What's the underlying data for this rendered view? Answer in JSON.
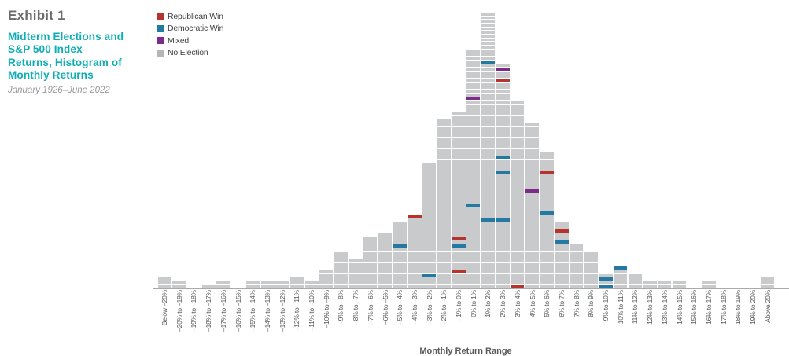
{
  "exhibit": {
    "label": "Exhibit 1"
  },
  "title": {
    "lines": [
      "Midterm Elections and",
      "S&P 500 Index",
      "Returns, Histogram of",
      "Monthly Returns"
    ],
    "subtitle": "January 1926–June 2022"
  },
  "legend": {
    "items": [
      {
        "key": "R",
        "label": "Republican Win",
        "color": "#b7342e"
      },
      {
        "key": "D",
        "label": "Democratic Win",
        "color": "#2379a1"
      },
      {
        "key": "M",
        "label": "Mixed",
        "color": "#7c2b8b"
      },
      {
        "key": "N",
        "label": "No Election",
        "color": "#b4b6b8"
      }
    ]
  },
  "colors": {
    "block_gray": "#c9cacb",
    "axis_line": "#a8aaac",
    "accent_teal": "#0fadb5"
  },
  "chart_data": {
    "type": "bar",
    "subtype": "stacked-unit-histogram",
    "title": "Midterm Elections and S&P 500 Index Returns, Histogram of Monthly Returns",
    "xlabel": "Monthly Return Range",
    "ylabel": "",
    "grid": false,
    "legend_position": "top-left",
    "note_unit": "each block = one month; colored blocks = midterm election months",
    "categories": [
      "Below –20%",
      "–20% to –19%",
      "–19% to –18%",
      "–18% to –17%",
      "–17% to –16%",
      "–16% to –15%",
      "–15% to –14%",
      "–14% to –13%",
      "–13% to –12%",
      "–12% to –11%",
      "–11% to –10%",
      "–10% to –9%",
      "–9% to –8%",
      "–8% to –7%",
      "–7% to –6%",
      "–6% to –5%",
      "–5% to –4%",
      "–4% to –3%",
      "–3% to –2%",
      "–2% to –1%",
      "–1% to 0%",
      "0% to 1%",
      "1% to 2%",
      "2% to 3%",
      "3% to 4%",
      "4% to 5%",
      "5% to 6%",
      "6% to 7%",
      "7% to 8%",
      "8% to 9%",
      "9% to 10%",
      "10% to 11%",
      "11% to 12%",
      "12% to 13%",
      "13% to 14%",
      "14% to 15%",
      "15% to 16%",
      "16% to 17%",
      "17% to 18%",
      "18% to 19%",
      "19% to 20%",
      "Above 20%"
    ],
    "values": [
      3,
      2,
      0,
      1,
      2,
      0,
      2,
      2,
      2,
      3,
      2,
      5,
      10,
      8,
      14,
      15,
      18,
      20,
      34,
      46,
      48,
      65,
      75,
      61,
      51,
      45,
      37,
      18,
      12,
      10,
      4,
      6,
      4,
      2,
      2,
      2,
      0,
      2,
      0,
      0,
      0,
      3
    ],
    "bins": [
      {
        "label": "Below –20%",
        "count": 3,
        "marks": {}
      },
      {
        "label": "–20% to –19%",
        "count": 2,
        "marks": {}
      },
      {
        "label": "–19% to –18%",
        "count": 0,
        "marks": {}
      },
      {
        "label": "–18% to –17%",
        "count": 1,
        "marks": {}
      },
      {
        "label": "–17% to –16%",
        "count": 2,
        "marks": {}
      },
      {
        "label": "–16% to –15%",
        "count": 0,
        "marks": {}
      },
      {
        "label": "–15% to –14%",
        "count": 2,
        "marks": {}
      },
      {
        "label": "–14% to –13%",
        "count": 2,
        "marks": {}
      },
      {
        "label": "–13% to –12%",
        "count": 2,
        "marks": {}
      },
      {
        "label": "–12% to –11%",
        "count": 3,
        "marks": {}
      },
      {
        "label": "–11% to –10%",
        "count": 2,
        "marks": {}
      },
      {
        "label": "–10% to –9%",
        "count": 5,
        "marks": {}
      },
      {
        "label": "–9% to –8%",
        "count": 10,
        "marks": {}
      },
      {
        "label": "–8% to –7%",
        "count": 8,
        "marks": {}
      },
      {
        "label": "–7% to –6%",
        "count": 14,
        "marks": {}
      },
      {
        "label": "–6% to –5%",
        "count": 15,
        "marks": {}
      },
      {
        "label": "–5% to –4%",
        "count": 18,
        "marks": {
          "12": "D"
        }
      },
      {
        "label": "–4% to –3%",
        "count": 20,
        "marks": {
          "20": "R"
        }
      },
      {
        "label": "–3% to –2%",
        "count": 34,
        "marks": {
          "4": "D"
        }
      },
      {
        "label": "–2% to –1%",
        "count": 46,
        "marks": {}
      },
      {
        "label": "–1% to 0%",
        "count": 48,
        "marks": {
          "14": "R",
          "12": "D",
          "5": "R"
        }
      },
      {
        "label": "0% to 1%",
        "count": 65,
        "marks": {
          "52": "M",
          "23": "D"
        }
      },
      {
        "label": "1% to 2%",
        "count": 75,
        "marks": {
          "62": "D",
          "19": "D"
        }
      },
      {
        "label": "2% to 3%",
        "count": 61,
        "marks": {
          "60": "M",
          "57": "R",
          "36": "D",
          "32": "D",
          "19": "D"
        }
      },
      {
        "label": "3% to 4%",
        "count": 51,
        "marks": {
          "1": "R"
        }
      },
      {
        "label": "4% to 5%",
        "count": 45,
        "marks": {
          "27": "M"
        }
      },
      {
        "label": "5% to 6%",
        "count": 37,
        "marks": {
          "32": "R",
          "21": "D"
        }
      },
      {
        "label": "6% to 7%",
        "count": 18,
        "marks": {
          "16": "R",
          "13": "D"
        }
      },
      {
        "label": "7% to 8%",
        "count": 12,
        "marks": {}
      },
      {
        "label": "8% to 9%",
        "count": 10,
        "marks": {}
      },
      {
        "label": "9% to 10%",
        "count": 4,
        "marks": {
          "3": "D",
          "1": "D"
        }
      },
      {
        "label": "10% to 11%",
        "count": 6,
        "marks": {
          "6": "D"
        }
      },
      {
        "label": "11% to 12%",
        "count": 4,
        "marks": {}
      },
      {
        "label": "12% to 13%",
        "count": 2,
        "marks": {}
      },
      {
        "label": "13% to 14%",
        "count": 2,
        "marks": {}
      },
      {
        "label": "14% to 15%",
        "count": 2,
        "marks": {}
      },
      {
        "label": "15% to 16%",
        "count": 0,
        "marks": {}
      },
      {
        "label": "16% to 17%",
        "count": 2,
        "marks": {}
      },
      {
        "label": "17% to 18%",
        "count": 0,
        "marks": {}
      },
      {
        "label": "18% to 19%",
        "count": 0,
        "marks": {}
      },
      {
        "label": "19% to 20%",
        "count": 0,
        "marks": {}
      },
      {
        "label": "Above 20%",
        "count": 3,
        "marks": {}
      }
    ]
  }
}
